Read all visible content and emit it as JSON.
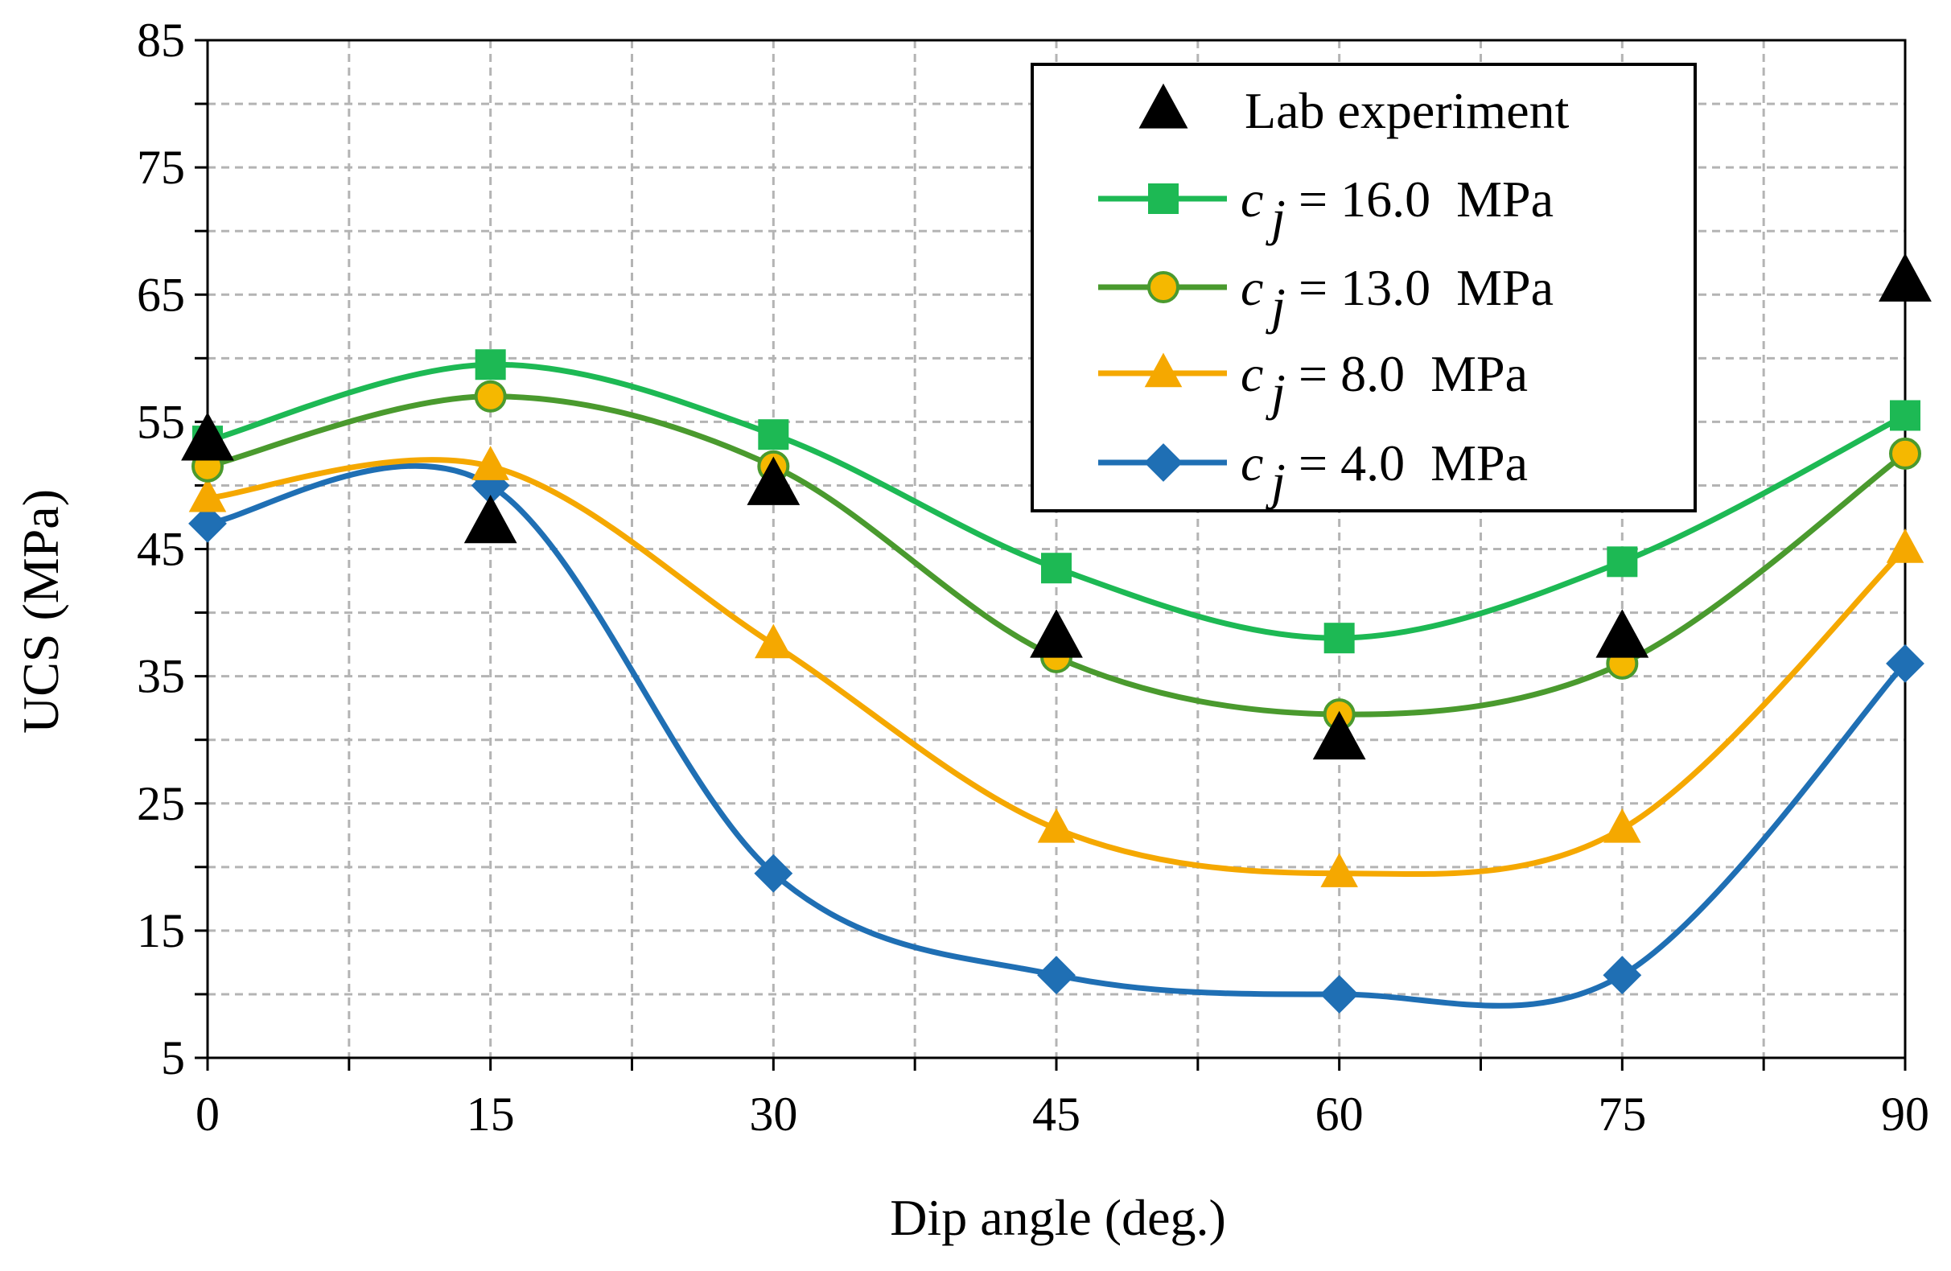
{
  "chart_data": {
    "type": "line",
    "title": "",
    "xlabel": "Dip angle (deg.)",
    "ylabel": "UCS (MPa)",
    "xlim": [
      0,
      90
    ],
    "ylim": [
      5,
      85
    ],
    "x_ticks": [
      0,
      15,
      30,
      45,
      60,
      75,
      90
    ],
    "x_minor_step": 7.5,
    "y_ticks": [
      5,
      15,
      25,
      35,
      45,
      55,
      65,
      75,
      85
    ],
    "y_minor_step": 5,
    "grid": true,
    "legend_position": "top-right",
    "x": [
      0,
      15,
      30,
      45,
      60,
      75,
      90
    ],
    "series": [
      {
        "name": "Lab experiment",
        "marker": "triangle",
        "line": false,
        "color": "#000000",
        "legend": {
          "text": "Lab experiment"
        },
        "values": [
          53.5,
          47,
          50,
          38,
          30,
          38,
          66
        ]
      },
      {
        "name": "c_j = 16.0 MPa",
        "marker": "square",
        "line": true,
        "color": "#1DB954",
        "marker_fill": "#1DB954",
        "marker_stroke": "#1DB954",
        "legend": {
          "var": "c",
          "sub": "j",
          "rest": "= 16.0  MPa"
        },
        "values": [
          53.5,
          59.5,
          54,
          43.5,
          38,
          44,
          55.5
        ]
      },
      {
        "name": "c_j = 13.0 MPa",
        "marker": "circle",
        "line": true,
        "color": "#4A9A2E",
        "marker_fill": "#F5B800",
        "marker_stroke": "#4A9A2E",
        "legend": {
          "var": "c",
          "sub": "j",
          "rest": "= 13.0  MPa"
        },
        "values": [
          51.5,
          57,
          51.5,
          36.5,
          32,
          36,
          52.5
        ]
      },
      {
        "name": "c_j = 8.0 MPa",
        "marker": "triangle",
        "line": true,
        "color": "#F5A800",
        "marker_fill": "#F5A800",
        "marker_stroke": "#F5A800",
        "legend": {
          "var": "c",
          "sub": "j",
          "rest": "= 8.0  MPa"
        },
        "values": [
          49,
          51.5,
          37.5,
          23,
          19.5,
          23,
          45
        ]
      },
      {
        "name": "c_j = 4.0 MPa",
        "marker": "diamond",
        "line": true,
        "color": "#1F6FB4",
        "marker_fill": "#1F6FB4",
        "marker_stroke": "#1F6FB4",
        "legend": {
          "var": "c",
          "sub": "j",
          "rest": "= 4.0  MPa"
        },
        "values": [
          47,
          50,
          19.5,
          11.5,
          10,
          11.5,
          36
        ]
      }
    ]
  }
}
